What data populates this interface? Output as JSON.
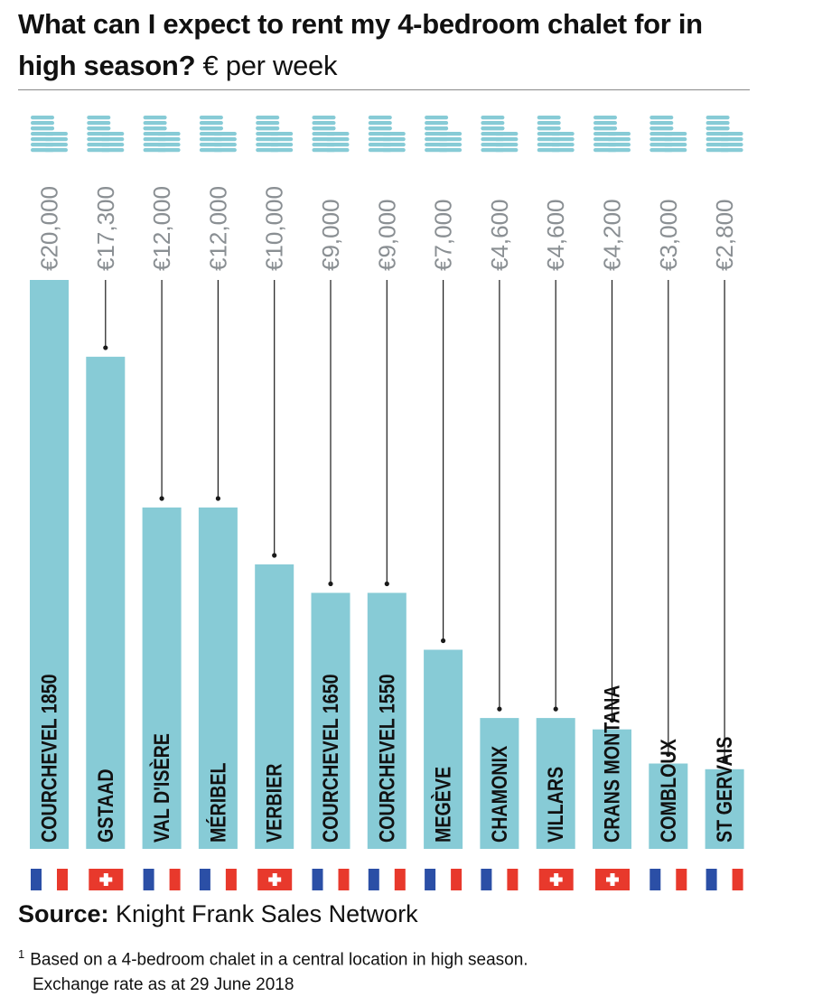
{
  "header": {
    "title": "What can I expect to rent my 4-bedroom chalet for in high season?",
    "unit": "€ per week"
  },
  "chart_data": {
    "type": "bar",
    "title": "What can I expect to rent my 4-bedroom chalet for in high season?",
    "subtitle": "€ per week",
    "xlabel": "",
    "ylabel": "",
    "ylim": [
      0,
      20000
    ],
    "grid": false,
    "categories": [
      "COURCHEVEL 1850",
      "GSTAAD",
      "VAL D'ISÈRE",
      "MÉRIBEL",
      "VERBIER",
      "COURCHEVEL 1650",
      "COURCHEVEL 1550",
      "MEGÈVE",
      "CHAMONIX",
      "VILLARS",
      "CRANS MONTANA",
      "COMBLOUX",
      "ST GERVAIS"
    ],
    "values": [
      20000,
      17300,
      12000,
      12000,
      10000,
      9000,
      9000,
      7000,
      4600,
      4600,
      4200,
      3000,
      2800
    ],
    "value_labels": [
      "€20,000",
      "€17,300",
      "€12,000",
      "€12,000",
      "€10,000",
      "€9,000",
      "€9,000",
      "€7,000",
      "€4,600",
      "€4,600",
      "€4,200",
      "€3,000",
      "€2,800"
    ],
    "countries": [
      "france",
      "switzerland",
      "france",
      "france",
      "switzerland",
      "france",
      "france",
      "france",
      "france",
      "switzerland",
      "switzerland",
      "france",
      "france"
    ],
    "colors": {
      "bar": "#87cbd6",
      "coin": "#87cbd6",
      "value_label": "#8a8f93",
      "leader": "#1a1a1a",
      "label_text": "#111111",
      "flag_blue": "#2b4fa6",
      "flag_red": "#e8392c",
      "flag_white": "#ffffff"
    },
    "icons": {
      "coins": "coin-stack-icon",
      "france": "france-flag-icon",
      "switzerland": "switzerland-flag-icon"
    }
  },
  "footer": {
    "source_label": "Source:",
    "source_text": "Knight Frank Sales Network",
    "footnote_mark": "1",
    "footnote_line1": "Based on a 4-bedroom chalet in a central location in high season.",
    "footnote_line2": "Exchange rate as at 29 June 2018"
  }
}
